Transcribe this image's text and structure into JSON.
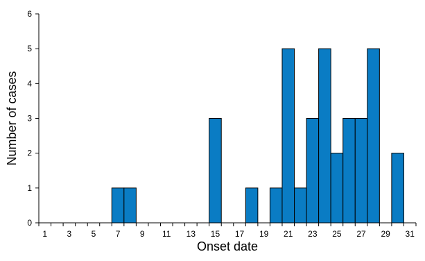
{
  "chart_data": {
    "type": "bar",
    "categories": [
      1,
      2,
      3,
      4,
      5,
      6,
      7,
      8,
      9,
      10,
      11,
      12,
      13,
      14,
      15,
      16,
      17,
      18,
      19,
      20,
      21,
      22,
      23,
      24,
      25,
      26,
      27,
      28,
      29,
      30,
      31
    ],
    "values": [
      0,
      0,
      0,
      0,
      0,
      0,
      1,
      1,
      0,
      0,
      0,
      0,
      0,
      0,
      3,
      0,
      0,
      1,
      0,
      1,
      5,
      1,
      3,
      5,
      2,
      3,
      3,
      5,
      0,
      2,
      0
    ],
    "x_tick_labels": [
      "1",
      "3",
      "5",
      "7",
      "9",
      "11",
      "13",
      "15",
      "17",
      "19",
      "21",
      "23",
      "25",
      "27",
      "29",
      "31"
    ],
    "y_tick_labels": [
      "0",
      "1",
      "2",
      "3",
      "4",
      "5",
      "6"
    ],
    "xlabel": "Onset date",
    "ylabel": "Number of cases",
    "ylim": [
      0,
      6
    ],
    "bar_color": "#0a7cc4",
    "grid": false,
    "legend": "none"
  }
}
